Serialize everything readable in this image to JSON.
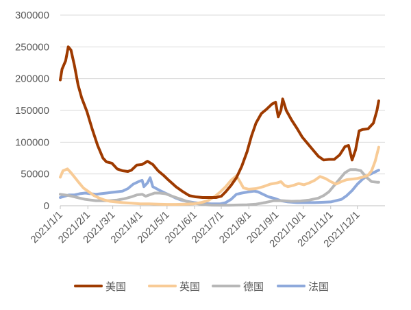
{
  "chart_data": {
    "type": "line",
    "title": "",
    "xlabel": "",
    "ylabel": "",
    "ylim": [
      0,
      300000
    ],
    "yticks": [
      0,
      50000,
      100000,
      150000,
      200000,
      250000,
      300000
    ],
    "ytick_labels": [
      "0",
      "50000",
      "100000",
      "150000",
      "200000",
      "250000",
      "300000"
    ],
    "xlim": [
      0,
      365
    ],
    "xticks": [
      {
        "label": "2021/1/1",
        "day": 0
      },
      {
        "label": "2021/2/1",
        "day": 31
      },
      {
        "label": "2021/3/1",
        "day": 59
      },
      {
        "label": "2021/4/1",
        "day": 90
      },
      {
        "label": "2021/5/1",
        "day": 120
      },
      {
        "label": "2021/6/1",
        "day": 151
      },
      {
        "label": "2021/7/1",
        "day": 181
      },
      {
        "label": "2021/8/1",
        "day": 212
      },
      {
        "label": "2021/9/1",
        "day": 243
      },
      {
        "label": "2021/10/1",
        "day": 273
      },
      {
        "label": "2021/11/1",
        "day": 304
      },
      {
        "label": "2021/12/1",
        "day": 334
      }
    ],
    "grid": "horizontal",
    "legend_position": "bottom",
    "series": [
      {
        "name": "美国",
        "color": "#9E3A00",
        "points": [
          [
            0,
            198000
          ],
          [
            2,
            215000
          ],
          [
            6,
            228000
          ],
          [
            9,
            250000
          ],
          [
            12,
            245000
          ],
          [
            16,
            220000
          ],
          [
            20,
            190000
          ],
          [
            24,
            170000
          ],
          [
            30,
            148000
          ],
          [
            36,
            120000
          ],
          [
            42,
            95000
          ],
          [
            48,
            75000
          ],
          [
            52,
            69000
          ],
          [
            58,
            67000
          ],
          [
            64,
            58000
          ],
          [
            70,
            55000
          ],
          [
            76,
            54000
          ],
          [
            80,
            56000
          ],
          [
            86,
            64000
          ],
          [
            92,
            65000
          ],
          [
            98,
            70000
          ],
          [
            104,
            65000
          ],
          [
            110,
            55000
          ],
          [
            116,
            48000
          ],
          [
            122,
            40000
          ],
          [
            130,
            30000
          ],
          [
            138,
            22000
          ],
          [
            145,
            16000
          ],
          [
            152,
            14000
          ],
          [
            160,
            13000
          ],
          [
            168,
            13000
          ],
          [
            175,
            13000
          ],
          [
            181,
            15000
          ],
          [
            186,
            22000
          ],
          [
            192,
            32000
          ],
          [
            198,
            44000
          ],
          [
            204,
            62000
          ],
          [
            210,
            85000
          ],
          [
            215,
            110000
          ],
          [
            220,
            130000
          ],
          [
            226,
            145000
          ],
          [
            232,
            152000
          ],
          [
            238,
            160000
          ],
          [
            242,
            163000
          ],
          [
            245,
            140000
          ],
          [
            248,
            150000
          ],
          [
            250,
            168000
          ],
          [
            254,
            150000
          ],
          [
            260,
            135000
          ],
          [
            266,
            122000
          ],
          [
            272,
            108000
          ],
          [
            278,
            98000
          ],
          [
            284,
            88000
          ],
          [
            290,
            78000
          ],
          [
            296,
            72000
          ],
          [
            302,
            73000
          ],
          [
            308,
            73000
          ],
          [
            314,
            80000
          ],
          [
            320,
            93000
          ],
          [
            324,
            95000
          ],
          [
            328,
            72000
          ],
          [
            332,
            88000
          ],
          [
            336,
            118000
          ],
          [
            340,
            120000
          ],
          [
            346,
            121000
          ],
          [
            352,
            130000
          ],
          [
            356,
            150000
          ],
          [
            358,
            165000
          ]
        ]
      },
      {
        "name": "英国",
        "color": "#F8CB96",
        "points": [
          [
            0,
            45000
          ],
          [
            3,
            55000
          ],
          [
            8,
            58000
          ],
          [
            12,
            52000
          ],
          [
            16,
            45000
          ],
          [
            20,
            38000
          ],
          [
            26,
            28000
          ],
          [
            32,
            22000
          ],
          [
            38,
            16000
          ],
          [
            44,
            12000
          ],
          [
            50,
            9000
          ],
          [
            56,
            7000
          ],
          [
            62,
            6000
          ],
          [
            70,
            5000
          ],
          [
            80,
            4000
          ],
          [
            90,
            3000
          ],
          [
            100,
            3000
          ],
          [
            110,
            2500
          ],
          [
            120,
            2000
          ],
          [
            130,
            2000
          ],
          [
            140,
            2500
          ],
          [
            150,
            3000
          ],
          [
            158,
            5000
          ],
          [
            166,
            8000
          ],
          [
            174,
            15000
          ],
          [
            180,
            22000
          ],
          [
            186,
            30000
          ],
          [
            192,
            40000
          ],
          [
            198,
            47000
          ],
          [
            202,
            38000
          ],
          [
            206,
            28000
          ],
          [
            212,
            26000
          ],
          [
            220,
            27000
          ],
          [
            228,
            30000
          ],
          [
            236,
            34000
          ],
          [
            244,
            36000
          ],
          [
            248,
            38000
          ],
          [
            252,
            32000
          ],
          [
            256,
            30000
          ],
          [
            262,
            32000
          ],
          [
            268,
            35000
          ],
          [
            274,
            33000
          ],
          [
            280,
            36000
          ],
          [
            286,
            40000
          ],
          [
            292,
            46000
          ],
          [
            298,
            43000
          ],
          [
            304,
            38000
          ],
          [
            310,
            34000
          ],
          [
            316,
            38000
          ],
          [
            322,
            41000
          ],
          [
            328,
            42000
          ],
          [
            334,
            43000
          ],
          [
            340,
            45000
          ],
          [
            346,
            48000
          ],
          [
            350,
            55000
          ],
          [
            354,
            70000
          ],
          [
            358,
            92000
          ]
        ]
      },
      {
        "name": "德国",
        "color": "#B7B7B7",
        "points": [
          [
            0,
            18000
          ],
          [
            5,
            17000
          ],
          [
            10,
            16000
          ],
          [
            16,
            14000
          ],
          [
            22,
            12000
          ],
          [
            28,
            10000
          ],
          [
            34,
            9000
          ],
          [
            40,
            8000
          ],
          [
            48,
            8000
          ],
          [
            56,
            8000
          ],
          [
            64,
            9000
          ],
          [
            72,
            11000
          ],
          [
            80,
            14000
          ],
          [
            86,
            17000
          ],
          [
            92,
            18000
          ],
          [
            96,
            15000
          ],
          [
            100,
            17000
          ],
          [
            106,
            20000
          ],
          [
            112,
            20000
          ],
          [
            118,
            19000
          ],
          [
            124,
            16000
          ],
          [
            130,
            13000
          ],
          [
            136,
            10000
          ],
          [
            142,
            7000
          ],
          [
            150,
            4000
          ],
          [
            160,
            2000
          ],
          [
            170,
            1000
          ],
          [
            180,
            800
          ],
          [
            190,
            900
          ],
          [
            200,
            1200
          ],
          [
            210,
            1500
          ],
          [
            220,
            2500
          ],
          [
            230,
            5000
          ],
          [
            240,
            8000
          ],
          [
            250,
            8000
          ],
          [
            260,
            7000
          ],
          [
            270,
            7500
          ],
          [
            280,
            9000
          ],
          [
            290,
            12000
          ],
          [
            296,
            16000
          ],
          [
            302,
            22000
          ],
          [
            308,
            32000
          ],
          [
            314,
            42000
          ],
          [
            320,
            52000
          ],
          [
            326,
            57000
          ],
          [
            332,
            57000
          ],
          [
            338,
            55000
          ],
          [
            344,
            45000
          ],
          [
            350,
            38000
          ],
          [
            356,
            37000
          ],
          [
            358,
            37000
          ]
        ]
      },
      {
        "name": "法国",
        "color": "#8EA9DB",
        "points": [
          [
            0,
            13000
          ],
          [
            5,
            15000
          ],
          [
            10,
            17000
          ],
          [
            16,
            17000
          ],
          [
            22,
            19000
          ],
          [
            28,
            20000
          ],
          [
            34,
            19000
          ],
          [
            40,
            18000
          ],
          [
            46,
            19000
          ],
          [
            52,
            20000
          ],
          [
            58,
            21000
          ],
          [
            64,
            22000
          ],
          [
            70,
            23000
          ],
          [
            76,
            27000
          ],
          [
            82,
            34000
          ],
          [
            88,
            38000
          ],
          [
            92,
            40000
          ],
          [
            94,
            30000
          ],
          [
            98,
            36000
          ],
          [
            101,
            44000
          ],
          [
            104,
            30000
          ],
          [
            108,
            27000
          ],
          [
            112,
            24000
          ],
          [
            118,
            20000
          ],
          [
            124,
            16000
          ],
          [
            130,
            12000
          ],
          [
            136,
            9000
          ],
          [
            142,
            7000
          ],
          [
            150,
            5000
          ],
          [
            160,
            3500
          ],
          [
            170,
            3000
          ],
          [
            180,
            3000
          ],
          [
            186,
            5000
          ],
          [
            192,
            10000
          ],
          [
            198,
            18000
          ],
          [
            204,
            20000
          ],
          [
            212,
            22000
          ],
          [
            218,
            23000
          ],
          [
            222,
            22000
          ],
          [
            228,
            18000
          ],
          [
            234,
            14000
          ],
          [
            240,
            12000
          ],
          [
            248,
            8000
          ],
          [
            256,
            6000
          ],
          [
            266,
            5000
          ],
          [
            276,
            5000
          ],
          [
            286,
            5000
          ],
          [
            296,
            5500
          ],
          [
            304,
            6000
          ],
          [
            310,
            8000
          ],
          [
            316,
            10000
          ],
          [
            322,
            16000
          ],
          [
            328,
            24000
          ],
          [
            334,
            34000
          ],
          [
            340,
            42000
          ],
          [
            346,
            48000
          ],
          [
            352,
            52000
          ],
          [
            358,
            56000
          ]
        ]
      }
    ]
  }
}
